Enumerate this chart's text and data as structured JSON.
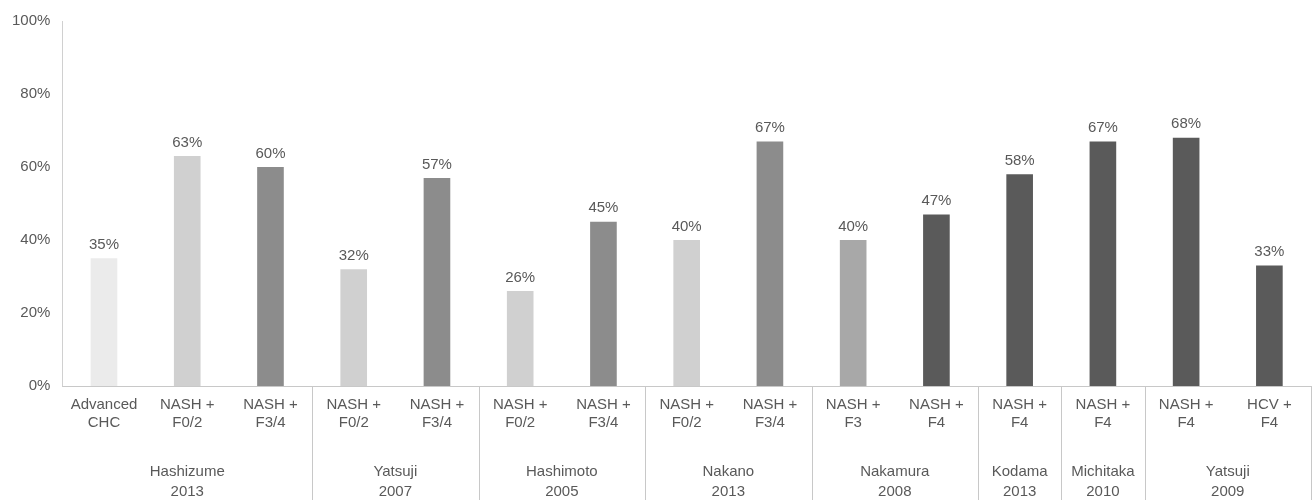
{
  "chart_data": {
    "type": "bar",
    "categories": [
      "Advanced\nCHC",
      "NASH +\nF0/2",
      "NASH +\nF3/4",
      "NASH +\nF0/2",
      "NASH +\nF3/4",
      "NASH +\nF0/2",
      "NASH +\nF3/4",
      "NASH +\nF0/2",
      "NASH +\nF3/4",
      "NASH +\nF3",
      "NASH +\nF4",
      "NASH +\nF4",
      "NASH +\nF4",
      "NASH +\nF4",
      "HCV +\nF4"
    ],
    "values": [
      35,
      63,
      60,
      32,
      57,
      26,
      45,
      40,
      67,
      40,
      47,
      58,
      67,
      68,
      33
    ],
    "colors": [
      "#ebebeb",
      "#d0d0d0",
      "#8c8c8c",
      "#d0d0d0",
      "#8c8c8c",
      "#d0d0d0",
      "#8c8c8c",
      "#d0d0d0",
      "#8c8c8c",
      "#a8a8a8",
      "#5a5a5a",
      "#5a5a5a",
      "#5a5a5a",
      "#5a5a5a",
      "#5a5a5a"
    ],
    "value_labels": [
      "35%",
      "63%",
      "60%",
      "32%",
      "57%",
      "26%",
      "45%",
      "40%",
      "67%",
      "40%",
      "47%",
      "58%",
      "67%",
      "68%",
      "33%"
    ],
    "ylim": [
      0,
      100
    ],
    "yticks": [
      {
        "value": 0,
        "label": "0%"
      },
      {
        "value": 20,
        "label": "20%"
      },
      {
        "value": 40,
        "label": "40%"
      },
      {
        "value": 60,
        "label": "60%"
      },
      {
        "value": 80,
        "label": "80%"
      },
      {
        "value": 100,
        "label": "100%"
      }
    ],
    "annotations": [
      "Hashizume\n2013",
      "Yatsuji\n2007",
      "Hashimoto\n2005",
      "Nakano\n2013",
      "Nakamura\n2008",
      "Kodama\n2013",
      "Michitaka\n2010",
      "Yatsuji\n2009"
    ],
    "grid": false,
    "legend": false
  }
}
